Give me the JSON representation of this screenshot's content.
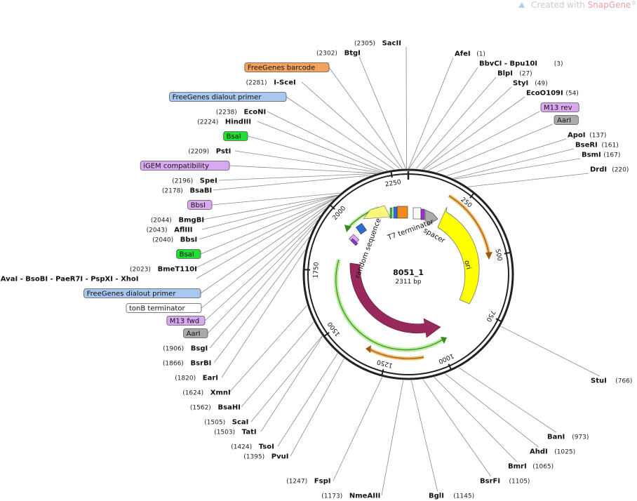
{
  "watermark": {
    "prefix": "Created with ",
    "brand": "SnapGene",
    "suffix": "®"
  },
  "plasmid": {
    "name": "8051_1",
    "length_label": "2311 bp",
    "length": 2311
  },
  "colors": {
    "backbone": "#222222",
    "ori": "#ffff00",
    "ampr": "#99285c",
    "primer_green": "#57b846",
    "orange_site": "#e6963c",
    "t7_term": "#f2f266",
    "barcode_orange": "#f5a35c",
    "dialout_blue": "#a8c8f0",
    "igem_purple": "#d9a8f0",
    "bsai_green": "#22dd33",
    "aari_gray": "#aaaaaa"
  },
  "ticks": [
    {
      "bp": 250,
      "text": "250"
    },
    {
      "bp": 500,
      "text": "500"
    },
    {
      "bp": 750,
      "text": "750"
    },
    {
      "bp": 1000,
      "text": "1000"
    },
    {
      "bp": 1250,
      "text": "1250"
    },
    {
      "bp": 1500,
      "text": "1500"
    },
    {
      "bp": 1750,
      "text": "1750"
    },
    {
      "bp": 2000,
      "text": "2000"
    },
    {
      "bp": 2250,
      "text": "2250"
    }
  ],
  "features": [
    {
      "name": "ori",
      "start": 270,
      "end": 860,
      "ring": "inner",
      "color": "#ffff00",
      "arrow": "cw",
      "label": "ori"
    },
    {
      "name": "AmpR",
      "start": 1031,
      "end": 1690,
      "ring": "innermost",
      "color": "#99285c",
      "arrow": "ccw",
      "label": "AmpR"
    },
    {
      "name": "T7 terminator",
      "start": 2130,
      "end": 2240,
      "ring": "feature",
      "color": "#f2f266",
      "arrow": "none",
      "label": "T7 terminator"
    },
    {
      "name": "random sequence",
      "start": 2020,
      "end": 2110,
      "ring": "feature",
      "color": "#ffffff",
      "arrow": "none",
      "label": "random sequence"
    },
    {
      "name": "spacer",
      "start": 40,
      "end": 150,
      "ring": "feature",
      "color": "#ffffff",
      "arrow": "none",
      "label": "spacer"
    }
  ],
  "right_sites": [
    {
      "pos": "(1)",
      "name": "AfeI"
    },
    {
      "pos": "(3)",
      "name": "BbvCI   - Bpu10I"
    },
    {
      "pos": "(27)",
      "name": "BlpI"
    },
    {
      "pos": "(49)",
      "name": "StyI"
    },
    {
      "pos": "(54)",
      "name": "EcoO109I"
    },
    {
      "box": "M13 rev",
      "color": "#d9a8f0"
    },
    {
      "box": "AarI",
      "color": "#aaaaaa"
    },
    {
      "pos": "(137)",
      "name": "ApoI"
    },
    {
      "pos": "(161)",
      "name": "BseRI"
    },
    {
      "pos": "(167)",
      "name": "BsmI"
    },
    {
      "pos": "(220)",
      "name": "DrdI"
    }
  ],
  "top_sites": [
    {
      "pos": "(2305)",
      "name": "SacII"
    },
    {
      "pos": "(2302)",
      "name": "BtgI"
    }
  ],
  "left_sites": [
    {
      "box": "FreeGenes barcode",
      "color": "#f5a35c"
    },
    {
      "pos": "(2281)",
      "name": "I-SceI"
    },
    {
      "box": "FreeGenes dialout primer",
      "color": "#a8c8f0"
    },
    {
      "pos": "(2238)",
      "name": "EcoNI"
    },
    {
      "pos": "(2224)",
      "name": "HindIII"
    },
    {
      "box": "BsaI",
      "color": "#22dd33"
    },
    {
      "pos": "(2209)",
      "name": "PstI"
    },
    {
      "box": "iGEM compatibility",
      "color": "#d9a8f0"
    },
    {
      "pos": "(2196)",
      "name": "SpeI"
    },
    {
      "pos": "(2178)",
      "name": "BsaBI"
    },
    {
      "box": "BbsI",
      "color": "#d9a8f0"
    },
    {
      "pos": "(2044)",
      "name": "BmgBI"
    },
    {
      "pos": "(2043)",
      "name": "AflIII"
    },
    {
      "pos": "(2040)",
      "name": "BbsI"
    },
    {
      "box": "BsaI",
      "color": "#22dd33"
    },
    {
      "pos": "(2023)",
      "name": "BmeT110I"
    },
    {
      "pos": "(2022)",
      "name": "AvaI   - BsoBI   - PaeR7I   - PspXI   - XhoI"
    },
    {
      "box": "FreeGenes dialout primer",
      "color": "#a8c8f0"
    },
    {
      "box": "tonB terminator",
      "color": "#ffffff"
    },
    {
      "box": "M13 fwd",
      "color": "#d9a8f0"
    },
    {
      "box": "AarI",
      "color": "#aaaaaa"
    },
    {
      "pos": "(1906)",
      "name": "BsgI"
    },
    {
      "pos": "(1866)",
      "name": "BsrBI"
    },
    {
      "pos": "(1820)",
      "name": "EarI"
    },
    {
      "pos": "(1624)",
      "name": "XmnI"
    },
    {
      "pos": "(1562)",
      "name": "BsaHI"
    },
    {
      "pos": "(1505)",
      "name": "ScaI"
    },
    {
      "pos": "(1503)",
      "name": "TatI"
    },
    {
      "pos": "(1424)",
      "name": "TsoI"
    },
    {
      "pos": "(1395)",
      "name": "PvuI"
    },
    {
      "pos": "(1247)",
      "name": "FspI"
    },
    {
      "pos": "(1173)",
      "name": "NmeAIII"
    }
  ],
  "bottom_right_sites": [
    {
      "pos": "(766)",
      "name": "StuI"
    },
    {
      "pos": "(973)",
      "name": "BanI"
    },
    {
      "pos": "(1025)",
      "name": "AhdI"
    },
    {
      "pos": "(1065)",
      "name": "BmrI"
    },
    {
      "pos": "(1105)",
      "name": "BsrFI"
    },
    {
      "pos": "(1145)",
      "name": "BglI"
    }
  ]
}
